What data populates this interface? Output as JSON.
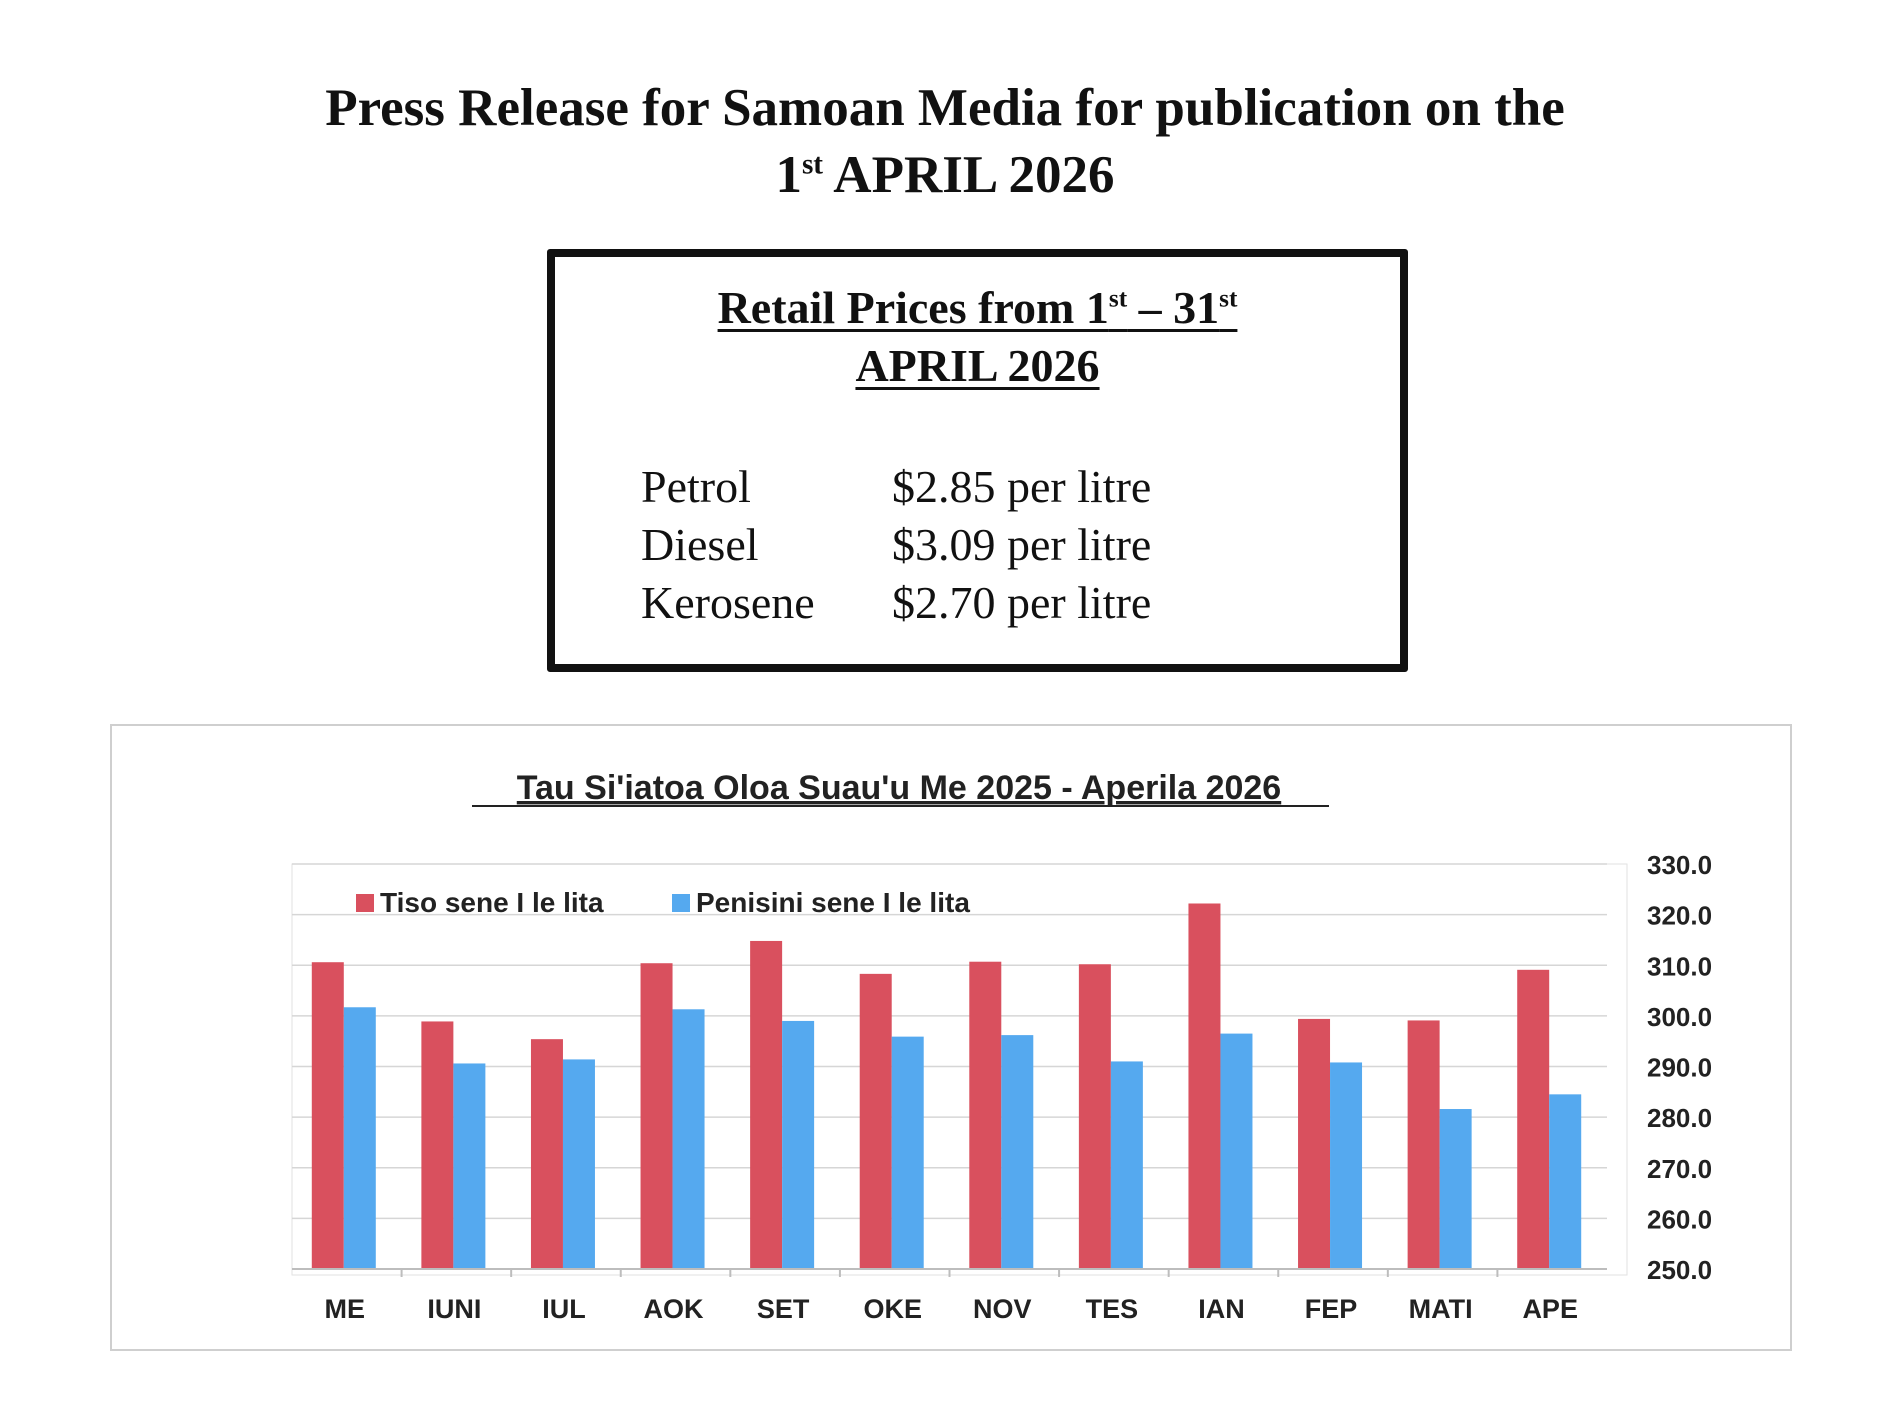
{
  "headline": {
    "line1": "Press Release for Samoan Media for publication on the",
    "line2_day": "1",
    "line2_suffix": "st",
    "line2_rest": " APRIL 2026"
  },
  "price_box": {
    "title_pre": "Retail Prices from 1",
    "title_sup1": "st",
    "title_mid": " – 31",
    "title_sup2": "st",
    "title_line2": "APRIL 2026",
    "rows": [
      {
        "fuel": "Petrol",
        "price": "$2.85 per litre"
      },
      {
        "fuel": "Diesel",
        "price": "$3.09 per litre"
      },
      {
        "fuel": "Kerosene",
        "price": "$2.70 per litre"
      }
    ]
  },
  "colors": {
    "diesel": "#d9505e",
    "petrol": "#55a9ef",
    "gridline": "#d6d6d6",
    "text": "#222222"
  },
  "chart_data": {
    "type": "bar",
    "title": "Tau Si'iatoa Oloa Suau'u Me 2025 - Aperila 2026",
    "categories": [
      "ME",
      "IUNI",
      "IUL",
      "AOK",
      "SET",
      "OKE",
      "NOV",
      "TES",
      "IAN",
      "FEP",
      "MATI",
      "APE"
    ],
    "series": [
      {
        "name": "Tiso sene I le lita",
        "values": [
          310.6,
          298.9,
          295.4,
          310.4,
          314.8,
          308.3,
          310.7,
          310.2,
          322.2,
          299.4,
          299.1,
          309.1
        ]
      },
      {
        "name": "Penisini sene I le lita",
        "values": [
          301.7,
          290.6,
          291.4,
          301.3,
          299.0,
          295.9,
          296.2,
          291.0,
          296.5,
          290.8,
          281.6,
          284.5
        ]
      }
    ],
    "y_ticks": [
      "330.0",
      "320.0",
      "310.0",
      "300.0",
      "290.0",
      "280.0",
      "270.0",
      "260.0",
      "250.0"
    ],
    "ylim": [
      250,
      330
    ],
    "y_axis_side": "right",
    "grid": true,
    "legend": "top-left"
  }
}
